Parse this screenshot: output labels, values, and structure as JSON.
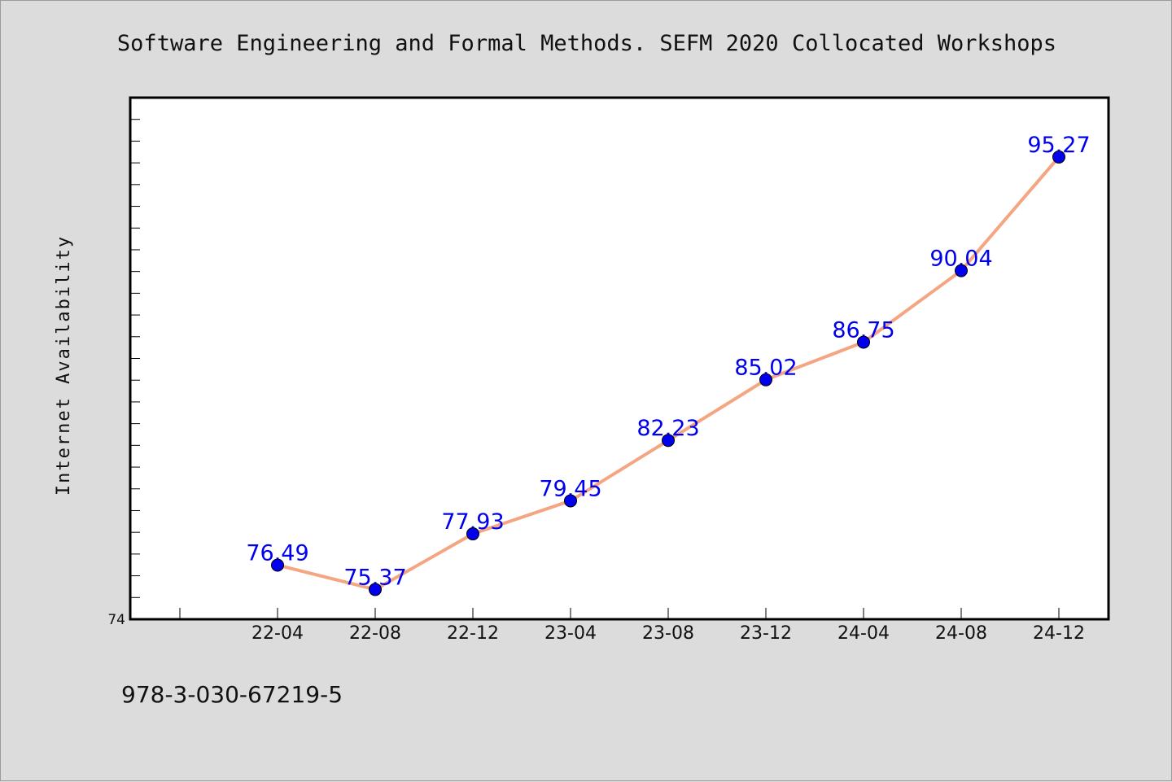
{
  "title": "Software Engineering and Formal Methods. SEFM 2020 Collocated Workshops",
  "footer": "978-3-030-67219-5",
  "colors": {
    "background": "#dcdcdc",
    "plot_background": "#ffffff",
    "line": "#f4a582",
    "marker": "#0000ee",
    "label": "#0000ee"
  },
  "chart_data": {
    "type": "line",
    "title": "Software Engineering and Formal Methods. SEFM 2020 Collocated Workshops",
    "xlabel": "",
    "ylabel": "Internet Availability",
    "categories": [
      "22-04",
      "22-08",
      "22-12",
      "23-04",
      "23-08",
      "23-12",
      "24-04",
      "24-08",
      "24-12"
    ],
    "series": [
      {
        "values": [
          76.49,
          75.37,
          77.93,
          79.45,
          82.23,
          85.02,
          86.75,
          90.04,
          95.27
        ],
        "labels": [
          "76.49",
          "75.37",
          "77.93",
          "79.45",
          "82.23",
          "85.02",
          "86.75",
          "90.04",
          "95.27"
        ]
      }
    ],
    "ylim": [
      74,
      98
    ],
    "y_tick_labels": [
      "74"
    ],
    "grid": false,
    "legend": "none"
  }
}
